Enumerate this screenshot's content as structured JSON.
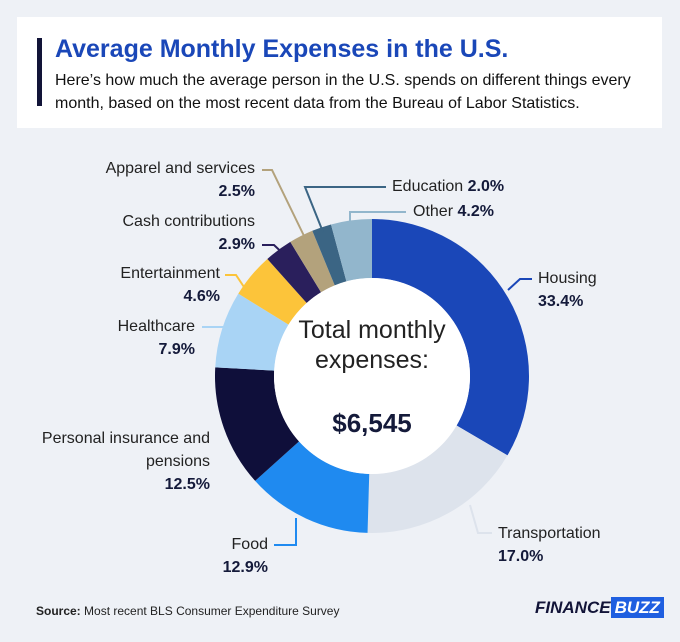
{
  "chart_data": {
    "type": "pie",
    "donut": true,
    "title": "Average Monthly Expenses in the U.S.",
    "subtitle": "Here’s how much the average person in the U.S. spends on different things every month, based on the most recent data from the Bureau of Labor Statistics.",
    "categories": [
      "Housing",
      "Transportation",
      "Food",
      "Personal insurance and pensions",
      "Healthcare",
      "Entertainment",
      "Cash contributions",
      "Apparel and services",
      "Education",
      "Other"
    ],
    "values": [
      33.4,
      17.0,
      12.9,
      12.5,
      7.9,
      4.6,
      2.9,
      2.5,
      2.0,
      4.2
    ],
    "value_labels": [
      "33.4%",
      "17.0%",
      "12.9%",
      "12.5%",
      "7.9%",
      "4.6%",
      "2.9%",
      "2.5%",
      "2.0%",
      "4.2%"
    ],
    "colors": [
      "#1a47b8",
      "#dde3ec",
      "#1f8af0",
      "#0f0f3a",
      "#a9d4f5",
      "#fcc43a",
      "#2a1f5c",
      "#b3a27c",
      "#3b6584",
      "#92b6cc"
    ],
    "center_text": "Total monthly expenses:",
    "total": {
      "value": 6545,
      "label": "$6,545"
    },
    "source_label": "Source:",
    "source": "Most recent BLS Consumer Expenditure Survey",
    "logo": [
      "FINANCE",
      "BUZZ"
    ]
  }
}
